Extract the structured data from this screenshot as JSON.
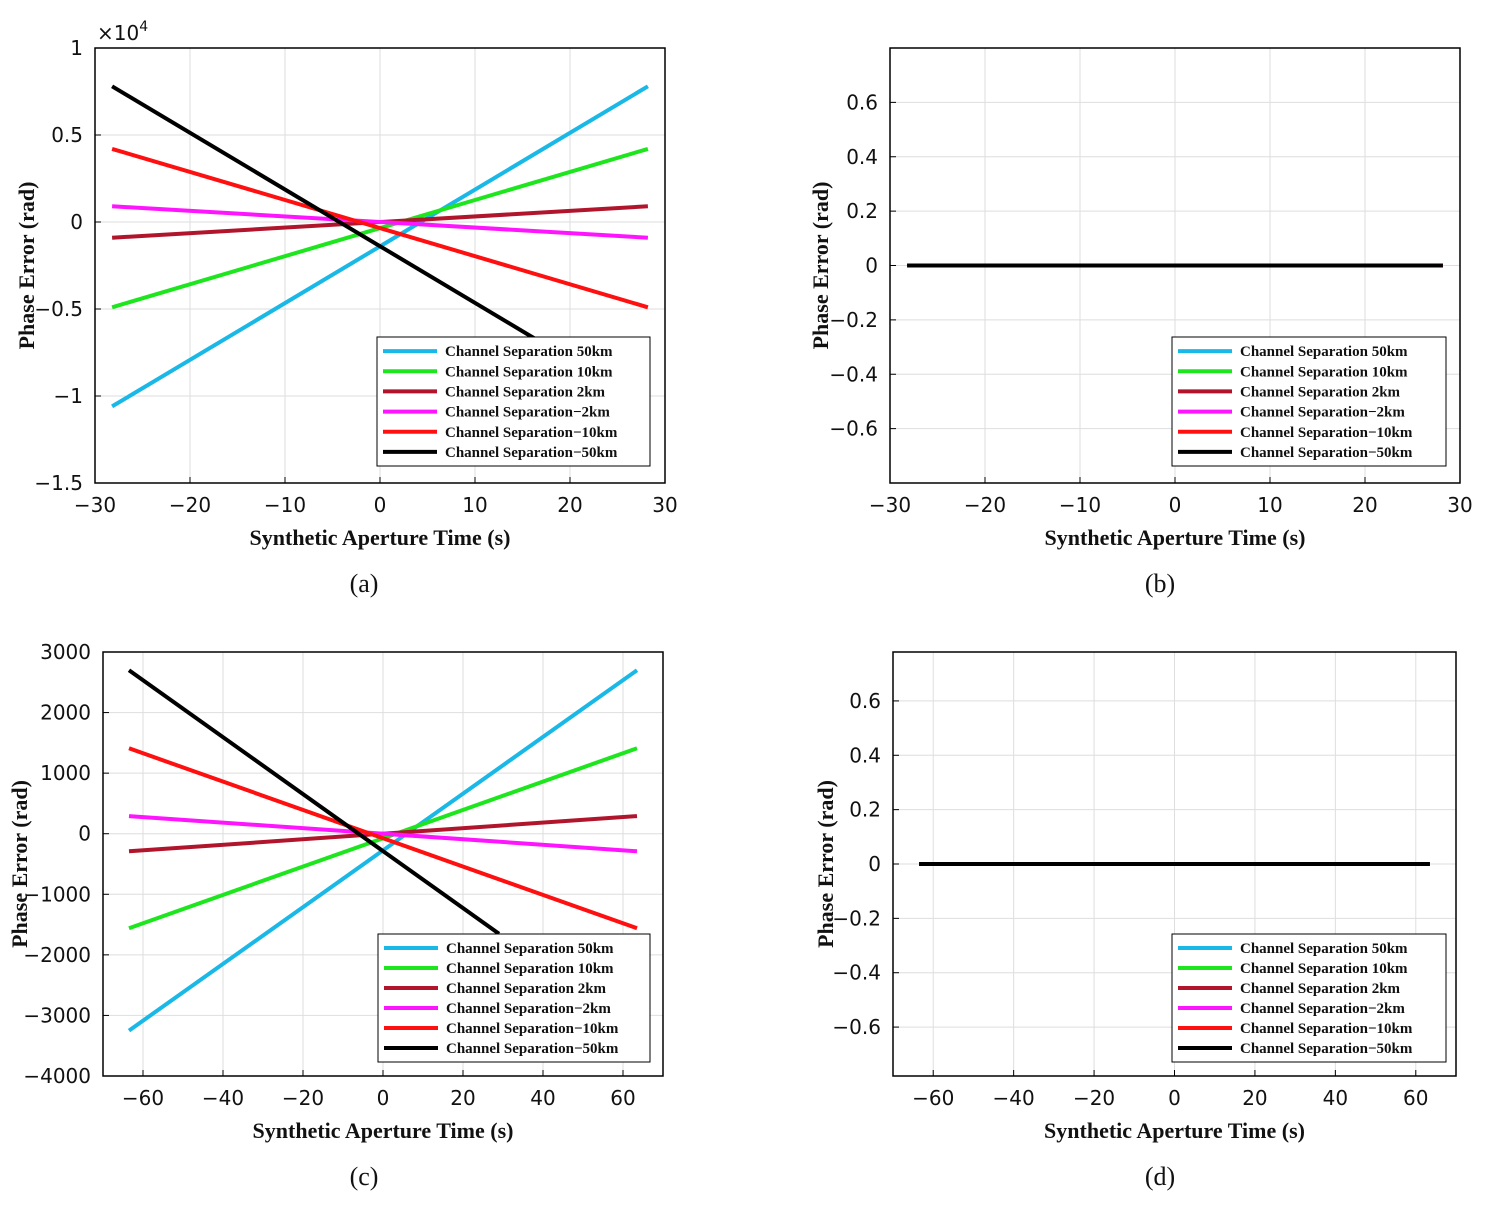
{
  "figure": {
    "legend_names": [
      "Channel Separation 50km",
      "Channel Separation 10km",
      "Channel Separation 2km",
      "Channel Separation−2km",
      "Channel Separation−10km",
      "Channel Separation−50km"
    ],
    "colors": {
      "cs_50km": "#1ab8e6",
      "cs_10km": "#1ee61e",
      "cs_2km": "#b0152c",
      "cs_neg2km": "#ff14ff",
      "cs_neg10km": "#ff1010",
      "cs_neg50km": "#000000",
      "grid": "#dedede",
      "axis": "#000000"
    }
  },
  "chart_data": [
    {
      "panel": "a",
      "caption": "(a)",
      "type": "line",
      "xlabel": "Synthetic Aperture Time (s)",
      "ylabel": "Phase Error (rad)",
      "xlim": [
        -30,
        30
      ],
      "ylim": [
        -1.5,
        1
      ],
      "xticks": [
        -30,
        -20,
        -10,
        0,
        10,
        20,
        30
      ],
      "xtick_labels": [
        "−30",
        "−20",
        "−10",
        "0",
        "10",
        "20",
        "30"
      ],
      "yticks": [
        -1.5,
        -1,
        -0.5,
        0,
        0.5,
        1
      ],
      "ytick_labels": [
        "−1.5",
        "−1",
        "−0.5",
        "0",
        "0.5",
        "1"
      ],
      "y_multiplier": {
        "base": "×10",
        "exponent": "4"
      },
      "grid": true,
      "legend_position": "bottom-right",
      "series": [
        {
          "name": "Channel Separation 50km",
          "color_key": "cs_50km",
          "x": [
            -28.2,
            28.2
          ],
          "y": [
            -1.06,
            0.78
          ]
        },
        {
          "name": "Channel Separation 10km",
          "color_key": "cs_10km",
          "x": [
            -28.2,
            28.2
          ],
          "y": [
            -0.49,
            0.42
          ]
        },
        {
          "name": "Channel Separation 2km",
          "color_key": "cs_2km",
          "x": [
            -28.2,
            28.2
          ],
          "y": [
            -0.09,
            0.09
          ]
        },
        {
          "name": "Channel Separation−2km",
          "color_key": "cs_neg2km",
          "x": [
            -28.2,
            28.2
          ],
          "y": [
            0.09,
            -0.09
          ]
        },
        {
          "name": "Channel Separation−10km",
          "color_key": "cs_neg10km",
          "x": [
            -28.2,
            28.2
          ],
          "y": [
            0.42,
            -0.49
          ]
        },
        {
          "name": "Channel Separation−50km",
          "color_key": "cs_neg50km",
          "x": [
            -28.2,
            16.3
          ],
          "y": [
            0.78,
            -0.67
          ]
        }
      ]
    },
    {
      "panel": "b",
      "caption": "(b)",
      "type": "line",
      "xlabel": "Synthetic Aperture Time (s)",
      "ylabel": "Phase Error (rad)",
      "xlim": [
        -30,
        30
      ],
      "ylim": [
        -0.8,
        0.8
      ],
      "xticks": [
        -30,
        -20,
        -10,
        0,
        10,
        20,
        30
      ],
      "xtick_labels": [
        "−30",
        "−20",
        "−10",
        "0",
        "10",
        "20",
        "30"
      ],
      "yticks": [
        -0.6,
        -0.4,
        -0.2,
        0,
        0.2,
        0.4,
        0.6
      ],
      "ytick_labels": [
        "−0.6",
        "−0.4",
        "−0.2",
        "0",
        "0.2",
        "0.4",
        "0.6"
      ],
      "grid": true,
      "legend_position": "bottom-right",
      "series": [
        {
          "name": "Channel Separation 50km",
          "color_key": "cs_50km",
          "x": [
            -28.2,
            28.2
          ],
          "y": [
            0.0,
            0.0
          ]
        },
        {
          "name": "Channel Separation 10km",
          "color_key": "cs_10km",
          "x": [
            -28.2,
            28.2
          ],
          "y": [
            0.0,
            0.0
          ]
        },
        {
          "name": "Channel Separation 2km",
          "color_key": "cs_2km",
          "x": [
            -28.2,
            28.2
          ],
          "y": [
            0.0,
            0.0
          ]
        },
        {
          "name": "Channel Separation−2km",
          "color_key": "cs_neg2km",
          "x": [
            -28.2,
            28.2
          ],
          "y": [
            0.0,
            0.0
          ]
        },
        {
          "name": "Channel Separation−10km",
          "color_key": "cs_neg10km",
          "x": [
            -28.2,
            28.2
          ],
          "y": [
            0.0,
            0.0
          ]
        },
        {
          "name": "Channel Separation−50km",
          "color_key": "cs_neg50km",
          "x": [
            -28.2,
            28.2
          ],
          "y": [
            0.0,
            0.0
          ]
        }
      ]
    },
    {
      "panel": "c",
      "caption": "(c)",
      "type": "line",
      "xlabel": "Synthetic Aperture Time (s)",
      "ylabel": "Phase Error (rad)",
      "xlim": [
        -70,
        70
      ],
      "ylim": [
        -4000,
        3000
      ],
      "xticks": [
        -60,
        -40,
        -20,
        0,
        20,
        40,
        60
      ],
      "xtick_labels": [
        "−60",
        "−40",
        "−20",
        "0",
        "20",
        "40",
        "60"
      ],
      "yticks": [
        -4000,
        -3000,
        -2000,
        -1000,
        0,
        1000,
        2000,
        3000
      ],
      "ytick_labels": [
        "−4000",
        "−3000",
        "−2000",
        "−1000",
        "0",
        "1000",
        "2000",
        "3000"
      ],
      "grid": true,
      "legend_position": "bottom-right",
      "series": [
        {
          "name": "Channel Separation 50km",
          "color_key": "cs_50km",
          "x": [
            -63.5,
            63.5
          ],
          "y": [
            -3250,
            2700
          ]
        },
        {
          "name": "Channel Separation 10km",
          "color_key": "cs_10km",
          "x": [
            -63.5,
            63.5
          ],
          "y": [
            -1560,
            1410
          ]
        },
        {
          "name": "Channel Separation 2km",
          "color_key": "cs_2km",
          "x": [
            -63.5,
            63.5
          ],
          "y": [
            -290,
            290
          ]
        },
        {
          "name": "Channel Separation−2km",
          "color_key": "cs_neg2km",
          "x": [
            -63.5,
            63.5
          ],
          "y": [
            290,
            -290
          ]
        },
        {
          "name": "Channel Separation−10km",
          "color_key": "cs_neg10km",
          "x": [
            -63.5,
            63.5
          ],
          "y": [
            1410,
            -1560
          ]
        },
        {
          "name": "Channel Separation−50km",
          "color_key": "cs_neg50km",
          "x": [
            -63.5,
            29.0
          ],
          "y": [
            2700,
            -1650
          ]
        }
      ]
    },
    {
      "panel": "d",
      "caption": "(d)",
      "type": "line",
      "xlabel": "Synthetic Aperture Time (s)",
      "ylabel": "Phase Error (rad)",
      "xlim": [
        -70,
        70
      ],
      "ylim": [
        -0.78,
        0.78
      ],
      "xticks": [
        -60,
        -40,
        -20,
        0,
        20,
        40,
        60
      ],
      "xtick_labels": [
        "−60",
        "−40",
        "−20",
        "0",
        "20",
        "40",
        "60"
      ],
      "yticks": [
        -0.6,
        -0.4,
        -0.2,
        0,
        0.2,
        0.4,
        0.6
      ],
      "ytick_labels": [
        "−0.6",
        "−0.4",
        "−0.2",
        "0",
        "0.2",
        "0.4",
        "0.6"
      ],
      "grid": true,
      "legend_position": "bottom-right",
      "series": [
        {
          "name": "Channel Separation 50km",
          "color_key": "cs_50km",
          "x": [
            -63.5,
            63.5
          ],
          "y": [
            0.0,
            0.0
          ]
        },
        {
          "name": "Channel Separation 10km",
          "color_key": "cs_10km",
          "x": [
            -63.5,
            63.5
          ],
          "y": [
            0.0,
            0.0
          ]
        },
        {
          "name": "Channel Separation 2km",
          "color_key": "cs_2km",
          "x": [
            -63.5,
            63.5
          ],
          "y": [
            0.0,
            0.0
          ]
        },
        {
          "name": "Channel Separation−2km",
          "color_key": "cs_neg2km",
          "x": [
            -63.5,
            63.5
          ],
          "y": [
            0.0,
            0.0
          ]
        },
        {
          "name": "Channel Separation−10km",
          "color_key": "cs_neg10km",
          "x": [
            -63.5,
            63.5
          ],
          "y": [
            0.0,
            0.0
          ]
        },
        {
          "name": "Channel Separation−50km",
          "color_key": "cs_neg50km",
          "x": [
            -63.5,
            63.5
          ],
          "y": [
            0.0,
            0.0
          ]
        }
      ]
    }
  ]
}
